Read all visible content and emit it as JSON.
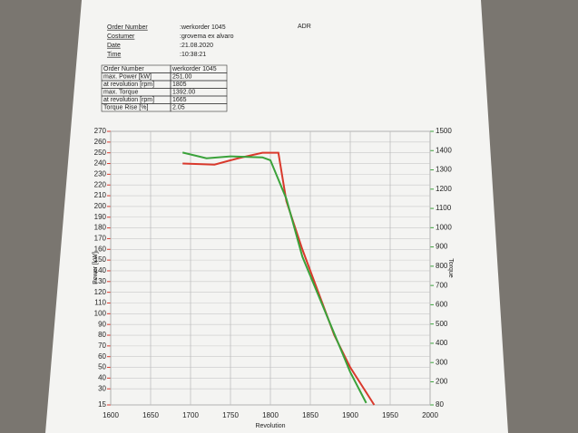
{
  "header": {
    "rows": [
      [
        "Order Number",
        ":werkorder 1045"
      ],
      [
        "Costumer",
        ":grovema ex alvaro"
      ],
      [
        "Date",
        ":21.08.2020"
      ],
      [
        "Time",
        ":10:38:21"
      ]
    ],
    "code": "ADR"
  },
  "table": {
    "rows": [
      [
        "Order Number",
        "werkorder 1045"
      ],
      [
        "max. Power [kW]",
        "251.00"
      ],
      [
        "at revolution [rpm]",
        "1805"
      ],
      [
        "max. Torque",
        "1392.00"
      ],
      [
        "at revolution [rpm]",
        "1665"
      ],
      [
        "Torque Rise [%]",
        "2.05"
      ]
    ]
  },
  "chart_data": {
    "type": "line",
    "xlabel": "Revolution",
    "ylabel": "Power [kW]",
    "y2label": "Torque",
    "xlim": [
      1600,
      2000
    ],
    "xticks": [
      1600,
      1650,
      1700,
      1750,
      1800,
      1850,
      1900,
      1950,
      2000
    ],
    "ylim": [
      15,
      270
    ],
    "yticks": [
      15,
      30,
      40,
      50,
      60,
      70,
      80,
      90,
      100,
      110,
      120,
      130,
      140,
      150,
      160,
      170,
      180,
      190,
      200,
      210,
      220,
      230,
      240,
      250,
      260,
      270
    ],
    "y2lim": [
      80,
      1500
    ],
    "y2ticks": [
      80,
      200,
      300,
      400,
      500,
      600,
      700,
      800,
      900,
      1000,
      1100,
      1200,
      1300,
      1400,
      1500
    ],
    "grid": true,
    "series": [
      {
        "color": "#d9392c",
        "x": [
          1690,
          1730,
          1760,
          1790,
          1810,
          1820,
          1840,
          1860,
          1880,
          1900,
          1930
        ],
        "values": [
          240,
          239,
          245,
          250,
          250,
          205,
          160,
          120,
          80,
          50,
          15
        ]
      },
      {
        "color": "#3aa23a",
        "axis": "y2",
        "x": [
          1690,
          1720,
          1750,
          1790,
          1800,
          1820,
          1840,
          1860,
          1880,
          1900,
          1920
        ],
        "values": [
          1390,
          1360,
          1370,
          1365,
          1350,
          1150,
          850,
          650,
          450,
          250,
          90
        ]
      }
    ]
  }
}
